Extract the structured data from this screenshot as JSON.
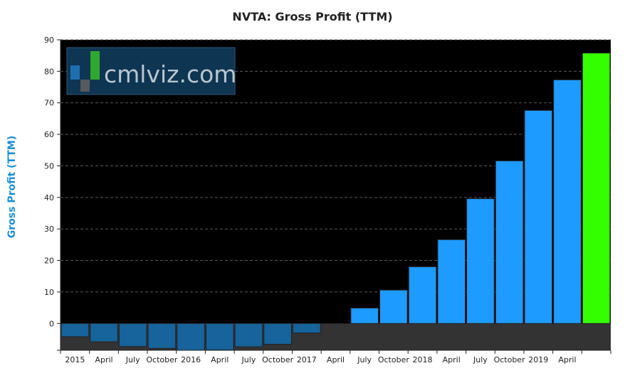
{
  "chart_data": {
    "type": "bar",
    "title": "NVTA: Gross Profit (TTM)",
    "ylabel": "Gross Profit (TTM)",
    "xlabel": "",
    "ylim": [
      -8.5,
      90
    ],
    "yticks": [
      0,
      10,
      20,
      30,
      40,
      50,
      60,
      70,
      80,
      90
    ],
    "grid": true,
    "watermark": "cmlviz.com",
    "colors": {
      "background": "#000000",
      "positive": "#1e9bff",
      "negative": "#17639b",
      "latest": "#33ff00",
      "negative_zone": "#333333",
      "axis_label": "#1a8fd6",
      "watermark_text": "#b9c6cf",
      "watermark_box": "#0e3552"
    },
    "tick_labels": [
      "2015",
      "April",
      "July",
      "October",
      "2016",
      "April",
      "July",
      "October",
      "2017",
      "April",
      "July",
      "October",
      "2018",
      "April",
      "July",
      "October",
      "2019",
      "April"
    ],
    "values": [
      -4.2,
      -5.8,
      -7.3,
      -7.9,
      -8.5,
      -8.4,
      -7.4,
      -6.6,
      -3.0,
      0,
      4.9,
      10.6,
      18.0,
      26.6,
      39.6,
      51.6,
      67.6,
      77.3,
      85.8
    ]
  }
}
